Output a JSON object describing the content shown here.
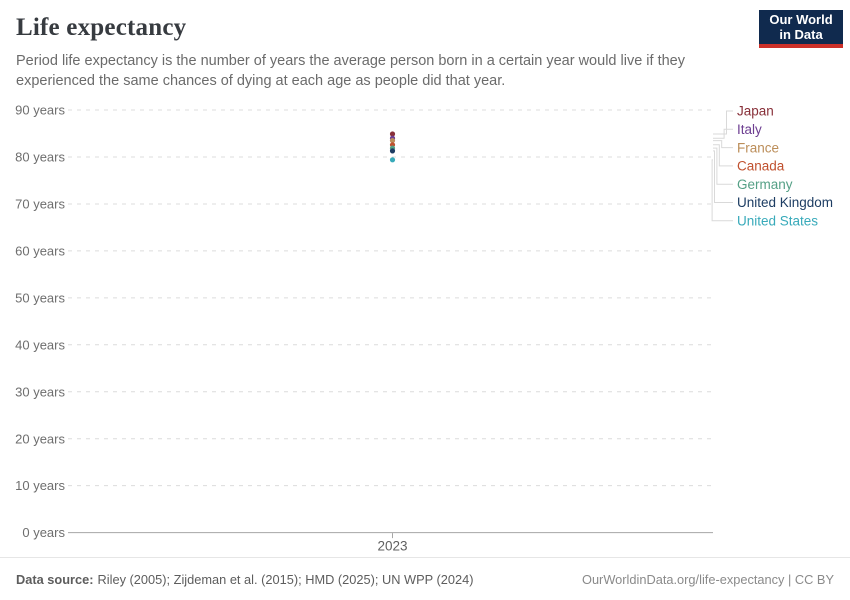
{
  "header": {
    "title": "Life expectancy",
    "subtitle": "Period life expectancy is the number of years the average person born in a certain year would live if they experienced the same chances of dying at each age as people did that year.",
    "logo": {
      "line1": "Our World",
      "line2": "in Data"
    }
  },
  "chart_data": {
    "type": "scatter",
    "title": "Life expectancy",
    "x_values": [
      2023
    ],
    "xtick_labels": [
      "2023"
    ],
    "ylim": [
      0,
      95
    ],
    "grid": "dashed-horizontal-gridlines",
    "legend_position": "right",
    "yticks": [
      {
        "value": 0,
        "label": "0 years"
      },
      {
        "value": 10,
        "label": "10 years"
      },
      {
        "value": 20,
        "label": "20 years"
      },
      {
        "value": 30,
        "label": "30 years"
      },
      {
        "value": 40,
        "label": "40 years"
      },
      {
        "value": 50,
        "label": "50 years"
      },
      {
        "value": 60,
        "label": "60 years"
      },
      {
        "value": 70,
        "label": "70 years"
      },
      {
        "value": 80,
        "label": "80 years"
      },
      {
        "value": 90,
        "label": "90 years"
      }
    ],
    "series": [
      {
        "name": "Japan",
        "color": "#883039",
        "values": [
          84.9
        ]
      },
      {
        "name": "Italy",
        "color": "#6D3E91",
        "values": [
          84.0
        ]
      },
      {
        "name": "France",
        "color": "#BC8E5A",
        "values": [
          83.5
        ]
      },
      {
        "name": "Canada",
        "color": "#C0512F",
        "values": [
          82.6
        ]
      },
      {
        "name": "Germany",
        "color": "#55A086",
        "values": [
          81.9
        ]
      },
      {
        "name": "United Kingdom",
        "color": "#1D3D63",
        "values": [
          81.3
        ]
      },
      {
        "name": "United States",
        "color": "#38AABA",
        "values": [
          79.4
        ]
      }
    ]
  },
  "footer": {
    "source_label": "Data source:",
    "source_text": "Riley (2005); Zijdeman et al. (2015); HMD (2025); UN WPP (2024)",
    "credit": "OurWorldinData.org/life-expectancy | CC BY"
  },
  "colors": {
    "logo_bg": "#102A4E",
    "logo_accent": "#CC3029",
    "gridline": "#dcdcdc",
    "axis": "#a6a6a6",
    "tick_text": "#6e6e6e",
    "connector": "#d9d9d9"
  }
}
